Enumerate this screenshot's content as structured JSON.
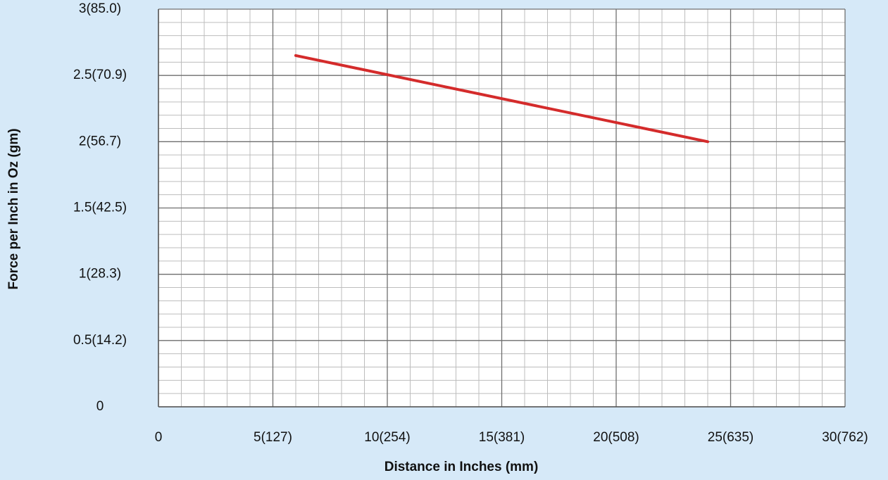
{
  "chart_data": {
    "type": "line",
    "xlabel": "Distance in Inches (mm)",
    "ylabel": "Force per Inch in Oz (gm)",
    "x": [
      6,
      24
    ],
    "series": [
      {
        "color": "#d42b2b",
        "values": [
          2.65,
          2.0
        ]
      }
    ],
    "xlim": [
      0,
      30
    ],
    "ylim": [
      0,
      3
    ],
    "xticks": [
      0,
      {
        "value": 5,
        "label": "5(127)"
      },
      {
        "value": 10,
        "label": "10(254)"
      },
      {
        "value": 15,
        "label": "15(381)"
      },
      {
        "value": 20,
        "label": "20(508)"
      },
      {
        "value": 25,
        "label": "25(635)"
      },
      {
        "value": 30,
        "label": "30(762)"
      }
    ],
    "yticks": [
      0,
      {
        "value": 0.5,
        "label": "0.5(14.2)"
      },
      {
        "value": 1,
        "label": "1(28.3)"
      },
      {
        "value": 1.5,
        "label": "1.5(42.5)"
      },
      {
        "value": 2,
        "label": "2(56.7)"
      },
      {
        "value": 2.5,
        "label": "2.5(70.9)"
      },
      {
        "value": 3,
        "label": "3(85.0)"
      }
    ],
    "grid": true,
    "minor_xstep": 1,
    "minor_ystep": 0.1
  }
}
